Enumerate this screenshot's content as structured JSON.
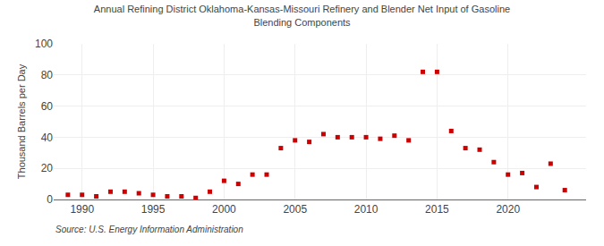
{
  "chart_data": {
    "type": "scatter",
    "title": "Annual Refining District Oklahoma-Kansas-Missouri Refinery and Blender Net Input of Gasoline\nBlending Components",
    "ylabel": "Thousand Barrels per Day",
    "annotations": [
      "Source: U.S. Energy Information Administration"
    ],
    "x": [
      1989,
      1990,
      1991,
      1992,
      1993,
      1994,
      1995,
      1996,
      1997,
      1998,
      1999,
      2000,
      2001,
      2002,
      2003,
      2004,
      2005,
      2006,
      2007,
      2008,
      2009,
      2010,
      2011,
      2012,
      2013,
      2014,
      2015,
      2016,
      2017,
      2018,
      2019,
      2020,
      2021,
      2022,
      2023,
      2024
    ],
    "values": [
      3,
      3,
      2,
      5,
      5,
      4,
      3,
      2,
      2,
      1,
      5,
      12,
      10,
      16,
      16,
      33,
      38,
      37,
      42,
      40,
      40,
      40,
      39,
      41,
      38,
      82,
      82,
      44,
      33,
      32,
      24,
      16,
      17,
      8,
      23,
      6
    ],
    "color": "#cc0000",
    "marker": "square",
    "xlim": [
      1988.0,
      2025.5
    ],
    "xticks": [
      1990,
      1995,
      2000,
      2005,
      2010,
      2015,
      2020
    ],
    "ylim": [
      0,
      100
    ],
    "yticks": [
      0,
      20,
      40,
      60,
      80,
      100
    ],
    "grid": true
  }
}
